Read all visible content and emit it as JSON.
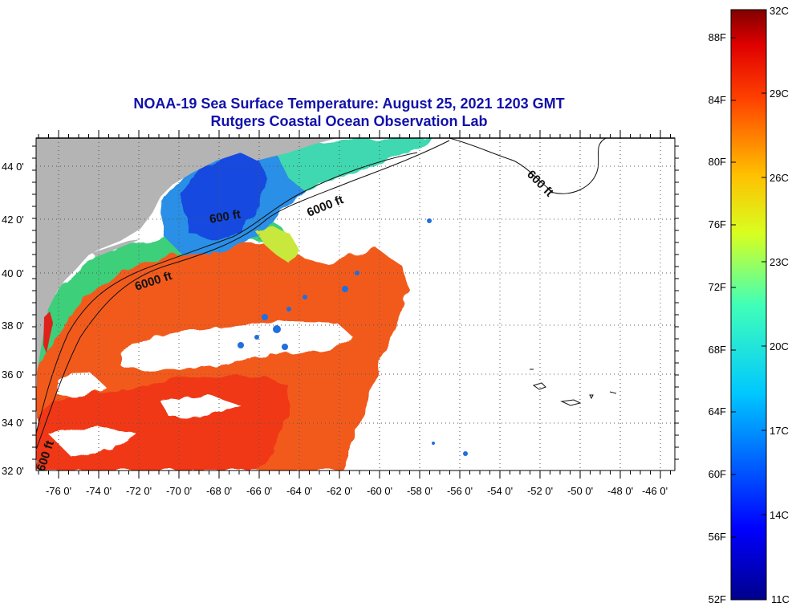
{
  "title": {
    "line1": "NOAA-19 Sea Surface Temperature:  August 25, 2021 1203 GMT",
    "line2": "Rutgers Coastal Ocean Observation Lab"
  },
  "map": {
    "lon_range": [
      -77,
      -45
    ],
    "lat_range": [
      32,
      45
    ],
    "lon_ticks": [
      "-76 0'",
      "-74 0'",
      "-72 0'",
      "-70 0'",
      "-68 0'",
      "-66 0'",
      "-64 0'",
      "-62 0'",
      "-60 0'",
      "-58 0'",
      "-56 0'",
      "-54 0'",
      "-52 0'",
      "-50 0'",
      "-48 0'",
      "-46 0'"
    ],
    "lat_ticks": [
      "32 0'",
      "34 0'",
      "36 0'",
      "38 0'",
      "40 0'",
      "42 0'",
      "44 0'"
    ],
    "grid": "dotted",
    "colors": {
      "land": "#b4b4b4",
      "cloud": "#ffffff",
      "warm_water": "#f25a1e",
      "hot_water": "#f23a1a",
      "cool_water": "#2aa0e0",
      "cold_water": "#1448e0",
      "green_water": "#3ecf7a"
    },
    "isobath_labels": [
      "6000 ft",
      "600 ft",
      "6000 ft",
      "600 ft",
      "600 ft"
    ]
  },
  "colorbar": {
    "fahrenheit_labels": [
      "88F",
      "84F",
      "80F",
      "76F",
      "72F",
      "68F",
      "64F",
      "60F",
      "56F",
      "52F"
    ],
    "celsius_labels": [
      "32C",
      "29C",
      "26C",
      "23C",
      "20C",
      "17C",
      "14C",
      "11C"
    ]
  }
}
